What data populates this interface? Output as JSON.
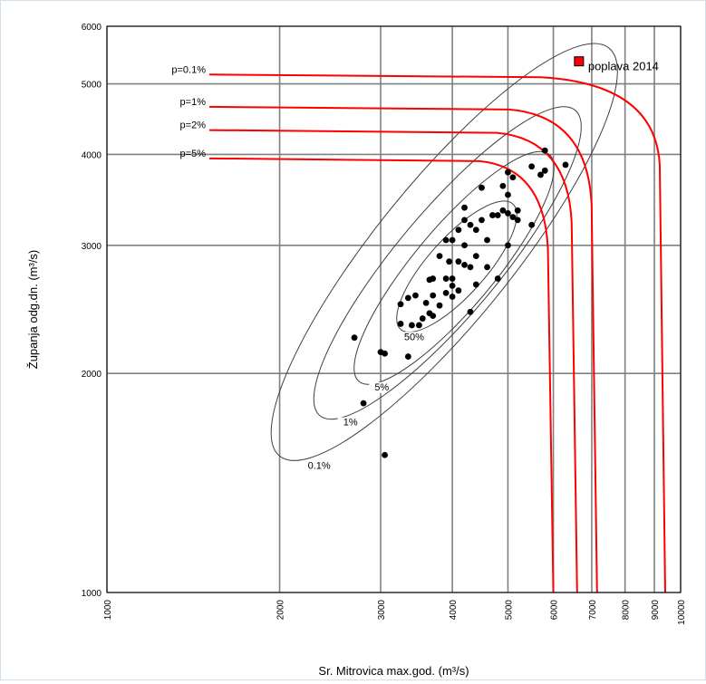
{
  "chart_data": {
    "type": "scatter",
    "xlabel": "Sr. Mitrovica max.god. (m³/s)",
    "ylabel": "Županja odg.dn. (m³/s)",
    "x_scale": "log",
    "y_scale": "log",
    "xlim": [
      1000,
      10000
    ],
    "ylim": [
      1000,
      6000
    ],
    "x_ticks": [
      1000,
      2000,
      3000,
      4000,
      5000,
      6000,
      7000,
      8000,
      9000,
      10000
    ],
    "y_ticks": [
      1000,
      2000,
      3000,
      4000,
      5000,
      6000
    ],
    "grid": true,
    "colors": {
      "points": "#000000",
      "return_period_curves": "#ff0000",
      "contours": "#404040",
      "highlight": "#ff0000"
    },
    "points": [
      [
        3050,
        1545
      ],
      [
        2800,
        1820
      ],
      [
        2700,
        2240
      ],
      [
        3000,
        2140
      ],
      [
        3050,
        2130
      ],
      [
        3350,
        2110
      ],
      [
        3250,
        2340
      ],
      [
        3400,
        2330
      ],
      [
        3500,
        2330
      ],
      [
        3550,
        2380
      ],
      [
        3250,
        2490
      ],
      [
        3350,
        2540
      ],
      [
        3450,
        2560
      ],
      [
        3600,
        2500
      ],
      [
        3700,
        2560
      ],
      [
        3650,
        2420
      ],
      [
        3700,
        2400
      ],
      [
        3800,
        2480
      ],
      [
        3900,
        2580
      ],
      [
        3650,
        2690
      ],
      [
        3900,
        2700
      ],
      [
        4000,
        2640
      ],
      [
        4100,
        2850
      ],
      [
        4200,
        2820
      ],
      [
        4000,
        2700
      ],
      [
        4100,
        2600
      ],
      [
        4000,
        2550
      ],
      [
        4300,
        2430
      ],
      [
        4400,
        2650
      ],
      [
        4300,
        2800
      ],
      [
        4400,
        2900
      ],
      [
        4600,
        2800
      ],
      [
        4200,
        3000
      ],
      [
        4000,
        3050
      ],
      [
        4100,
        3150
      ],
      [
        4400,
        3150
      ],
      [
        4300,
        3200
      ],
      [
        4200,
        3380
      ],
      [
        4500,
        3250
      ],
      [
        4600,
        3050
      ],
      [
        4800,
        2700
      ],
      [
        4700,
        3300
      ],
      [
        4800,
        3300
      ],
      [
        4900,
        3350
      ],
      [
        5000,
        3320
      ],
      [
        5100,
        3280
      ],
      [
        5200,
        3350
      ],
      [
        5000,
        3520
      ],
      [
        4900,
        3620
      ],
      [
        5000,
        3780
      ],
      [
        5100,
        3720
      ],
      [
        4500,
        3600
      ],
      [
        4200,
        3250
      ],
      [
        3900,
        3050
      ],
      [
        3950,
        2850
      ],
      [
        3800,
        2900
      ],
      [
        3700,
        2700
      ],
      [
        5000,
        3000
      ],
      [
        5200,
        3250
      ],
      [
        5500,
        3200
      ],
      [
        5500,
        3850
      ],
      [
        5700,
        3750
      ],
      [
        5800,
        3800
      ],
      [
        5800,
        4050
      ],
      [
        6300,
        3870
      ]
    ],
    "highlight_point": {
      "label": "poplava 2014",
      "x": 6650,
      "y": 5370
    },
    "return_period_curves": [
      {
        "name": "p=0.1%",
        "y_asymptote": 5150,
        "x_asymptote": 9400,
        "knee": [
          7100,
          4850
        ]
      },
      {
        "name": "p=1%",
        "y_asymptote": 4650,
        "x_asymptote": 7150,
        "knee": [
          6250,
          4280
        ]
      },
      {
        "name": "p=2%",
        "y_asymptote": 4320,
        "x_asymptote": 6600,
        "knee": [
          5950,
          4050
        ]
      },
      {
        "name": "p=5%",
        "y_asymptote": 3950,
        "x_asymptote": 6000,
        "knee": [
          5550,
          3730
        ]
      }
    ],
    "contours": [
      {
        "label": "50%",
        "center": [
          4200,
          2850
        ],
        "low_end": [
          3250,
          2300
        ],
        "high_end": [
          5100,
          3420
        ],
        "width": 0.05
      },
      {
        "label": "5%",
        "center": [
          4350,
          2950
        ],
        "low_end": [
          2750,
          1950
        ],
        "high_end": [
          5900,
          4000
        ],
        "width": 0.07
      },
      {
        "label": "1%",
        "center": [
          4450,
          3000
        ],
        "low_end": [
          2350,
          1750
        ],
        "high_end": [
          6550,
          4600
        ],
        "width": 0.09
      },
      {
        "label": "0.1%",
        "center": [
          4600,
          3100
        ],
        "low_end": [
          2000,
          1540
        ],
        "high_end": [
          7500,
          5600
        ],
        "width": 0.12
      }
    ]
  }
}
